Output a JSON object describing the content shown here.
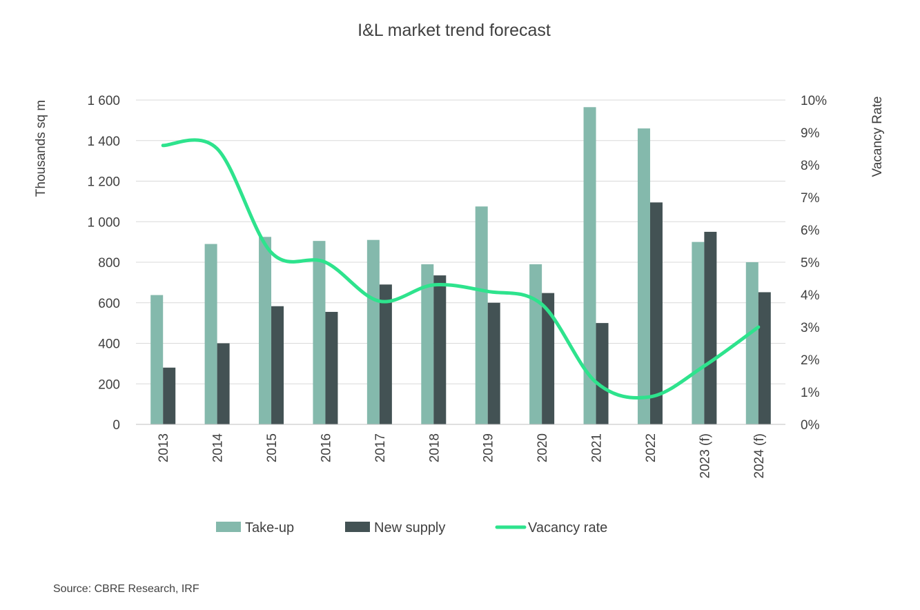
{
  "chart_data": {
    "type": "bar",
    "title": "I&L market trend forecast",
    "categories": [
      "2013",
      "2014",
      "2015",
      "2016",
      "2017",
      "2018",
      "2019",
      "2020",
      "2021",
      "2022",
      "2023 (f)",
      "2024 (f)"
    ],
    "series": [
      {
        "name": "Take-up",
        "type": "bar",
        "axis": "left",
        "color": "#84b9ac",
        "values": [
          638,
          890,
          925,
          905,
          910,
          790,
          1075,
          790,
          1565,
          1460,
          900,
          800
        ]
      },
      {
        "name": "New supply",
        "type": "bar",
        "axis": "left",
        "color": "#435254",
        "values": [
          280,
          400,
          583,
          555,
          690,
          735,
          600,
          648,
          500,
          1095,
          950,
          652
        ]
      },
      {
        "name": "Vacancy rate",
        "type": "line",
        "axis": "right",
        "color": "#2ee38d",
        "values": [
          8.6,
          8.5,
          5.3,
          5.0,
          3.8,
          4.3,
          4.1,
          3.7,
          1.3,
          0.85,
          1.8,
          3.0
        ]
      }
    ],
    "ylabel": "Thousands sq m",
    "ylabel_right": "Vacancy Rate",
    "ylim": [
      0,
      1600
    ],
    "ylim_right": [
      0,
      10
    ],
    "yticks": [
      "0",
      "200",
      "400",
      "600",
      "800",
      "1 000",
      "1 200",
      "1 400",
      "1 600"
    ],
    "yticks_right": [
      "0%",
      "1%",
      "2%",
      "3%",
      "4%",
      "5%",
      "6%",
      "7%",
      "8%",
      "9%",
      "10%"
    ],
    "grid": true,
    "legend_position": "bottom"
  },
  "source": "Source: CBRE Research, IRF"
}
